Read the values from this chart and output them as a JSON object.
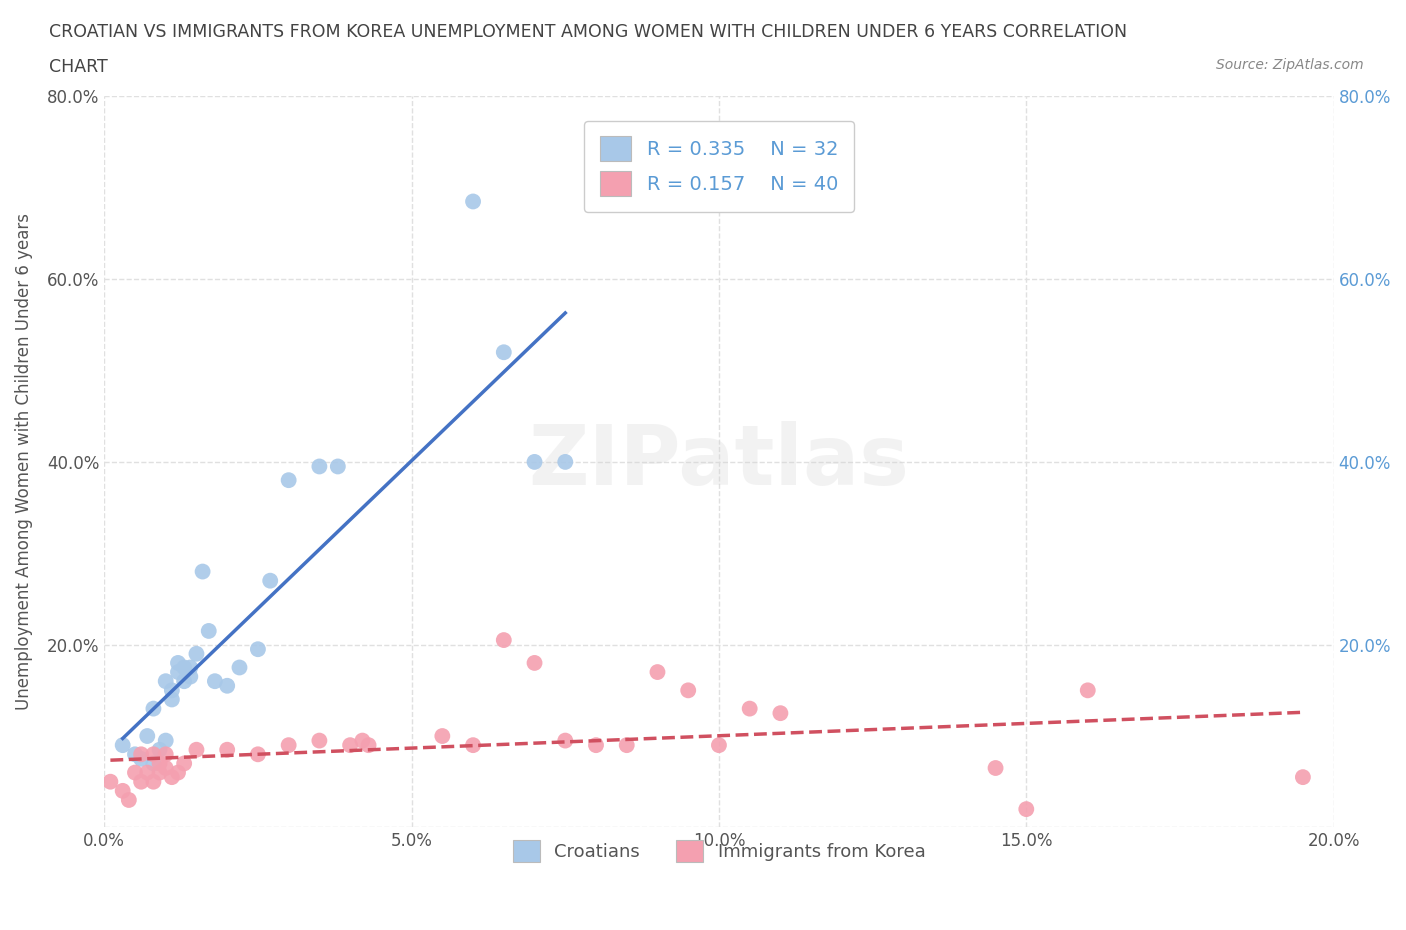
{
  "title_line1": "CROATIAN VS IMMIGRANTS FROM KOREA UNEMPLOYMENT AMONG WOMEN WITH CHILDREN UNDER 6 YEARS CORRELATION",
  "title_line2": "CHART",
  "source_text": "Source: ZipAtlas.com",
  "ylabel": "Unemployment Among Women with Children Under 6 years",
  "xlim": [
    0.0,
    0.2
  ],
  "ylim": [
    0.0,
    0.8
  ],
  "xticks": [
    0.0,
    0.05,
    0.1,
    0.15,
    0.2
  ],
  "yticks": [
    0.0,
    0.2,
    0.4,
    0.6,
    0.8
  ],
  "croatian_color": "#a8c8e8",
  "korea_color": "#f4a0b0",
  "croatian_line_color": "#4472c4",
  "korea_line_color": "#d05060",
  "legend_R1": "0.335",
  "legend_N1": "32",
  "legend_R2": "0.157",
  "legend_N2": "40",
  "watermark": "ZIPatlas",
  "background_color": "#ffffff",
  "grid_color": "#e0e0e0",
  "right_tick_color": "#5b9bd5",
  "label_color": "#555555",
  "croatian_x": [
    0.003,
    0.005,
    0.006,
    0.007,
    0.008,
    0.008,
    0.009,
    0.01,
    0.01,
    0.011,
    0.011,
    0.012,
    0.012,
    0.013,
    0.013,
    0.014,
    0.014,
    0.015,
    0.016,
    0.017,
    0.018,
    0.02,
    0.022,
    0.025,
    0.027,
    0.03,
    0.035,
    0.038,
    0.06,
    0.065,
    0.07,
    0.075
  ],
  "croatian_y": [
    0.09,
    0.08,
    0.075,
    0.1,
    0.07,
    0.13,
    0.085,
    0.095,
    0.16,
    0.14,
    0.15,
    0.17,
    0.18,
    0.16,
    0.175,
    0.165,
    0.175,
    0.19,
    0.28,
    0.215,
    0.16,
    0.155,
    0.175,
    0.195,
    0.27,
    0.38,
    0.395,
    0.395,
    0.685,
    0.52,
    0.4,
    0.4
  ],
  "korea_x": [
    0.001,
    0.003,
    0.004,
    0.005,
    0.006,
    0.006,
    0.007,
    0.008,
    0.008,
    0.009,
    0.009,
    0.01,
    0.01,
    0.011,
    0.012,
    0.013,
    0.015,
    0.02,
    0.025,
    0.03,
    0.035,
    0.04,
    0.042,
    0.043,
    0.055,
    0.06,
    0.065,
    0.07,
    0.075,
    0.08,
    0.085,
    0.09,
    0.095,
    0.1,
    0.105,
    0.11,
    0.145,
    0.15,
    0.16,
    0.195
  ],
  "korea_y": [
    0.05,
    0.04,
    0.03,
    0.06,
    0.05,
    0.08,
    0.06,
    0.05,
    0.08,
    0.07,
    0.06,
    0.065,
    0.08,
    0.055,
    0.06,
    0.07,
    0.085,
    0.085,
    0.08,
    0.09,
    0.095,
    0.09,
    0.095,
    0.09,
    0.1,
    0.09,
    0.205,
    0.18,
    0.095,
    0.09,
    0.09,
    0.17,
    0.15,
    0.09,
    0.13,
    0.125,
    0.065,
    0.02,
    0.15,
    0.055
  ]
}
